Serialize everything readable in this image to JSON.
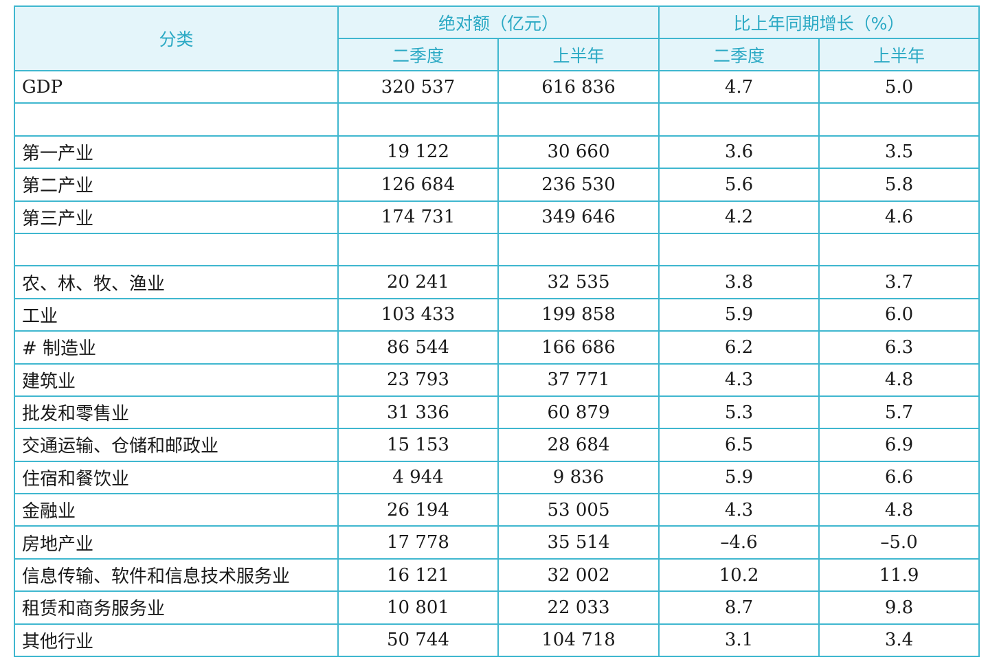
{
  "header": {
    "category": "分类",
    "absolute": "绝对额（亿元）",
    "growth": "比上年同期增长（%）",
    "sub": [
      "二季度",
      "上半年",
      "二季度",
      "上半年"
    ]
  },
  "rows": [
    {
      "label": "GDP",
      "values": [
        "320 537",
        "616 836",
        "4.7",
        "5.0"
      ]
    },
    {
      "label": "",
      "values": [
        "",
        "",
        "",
        ""
      ]
    },
    {
      "label": "第一产业",
      "values": [
        "19 122",
        "30 660",
        "3.6",
        "3.5"
      ]
    },
    {
      "label": "第二产业",
      "values": [
        "126 684",
        "236 530",
        "5.6",
        "5.8"
      ]
    },
    {
      "label": "第三产业",
      "values": [
        "174 731",
        "349 646",
        "4.2",
        "4.6"
      ]
    },
    {
      "label": "",
      "values": [
        "",
        "",
        "",
        ""
      ]
    },
    {
      "label": "农、林、牧、渔业",
      "values": [
        "20 241",
        "32 535",
        "3.8",
        "3.7"
      ]
    },
    {
      "label": "工业",
      "values": [
        "103 433",
        "199 858",
        "5.9",
        "6.0"
      ]
    },
    {
      "label": "# 制造业",
      "values": [
        "86 544",
        "166 686",
        "6.2",
        "6.3"
      ]
    },
    {
      "label": "建筑业",
      "values": [
        "23 793",
        "37 771",
        "4.3",
        "4.8"
      ]
    },
    {
      "label": "批发和零售业",
      "values": [
        "31 336",
        "60 879",
        "5.3",
        "5.7"
      ]
    },
    {
      "label": "交通运输、仓储和邮政业",
      "values": [
        "15 153",
        "28 684",
        "6.5",
        "6.9"
      ]
    },
    {
      "label": "住宿和餐饮业",
      "values": [
        "4 944",
        "9 836",
        "5.9",
        "6.6"
      ]
    },
    {
      "label": "金融业",
      "values": [
        "26 194",
        "53 005",
        "4.3",
        "4.8"
      ]
    },
    {
      "label": "房地产业",
      "values": [
        "17 778",
        "35 514",
        "–4.6",
        "–5.0"
      ]
    },
    {
      "label": "信息传输、软件和信息技术服务业",
      "values": [
        "16 121",
        "32 002",
        "10.2",
        "11.9"
      ]
    },
    {
      "label": "租赁和商务服务业",
      "values": [
        "10 801",
        "22 033",
        "8.7",
        "9.8"
      ]
    },
    {
      "label": "其他行业",
      "values": [
        "50 744",
        "104 718",
        "3.1",
        "3.4"
      ]
    }
  ]
}
